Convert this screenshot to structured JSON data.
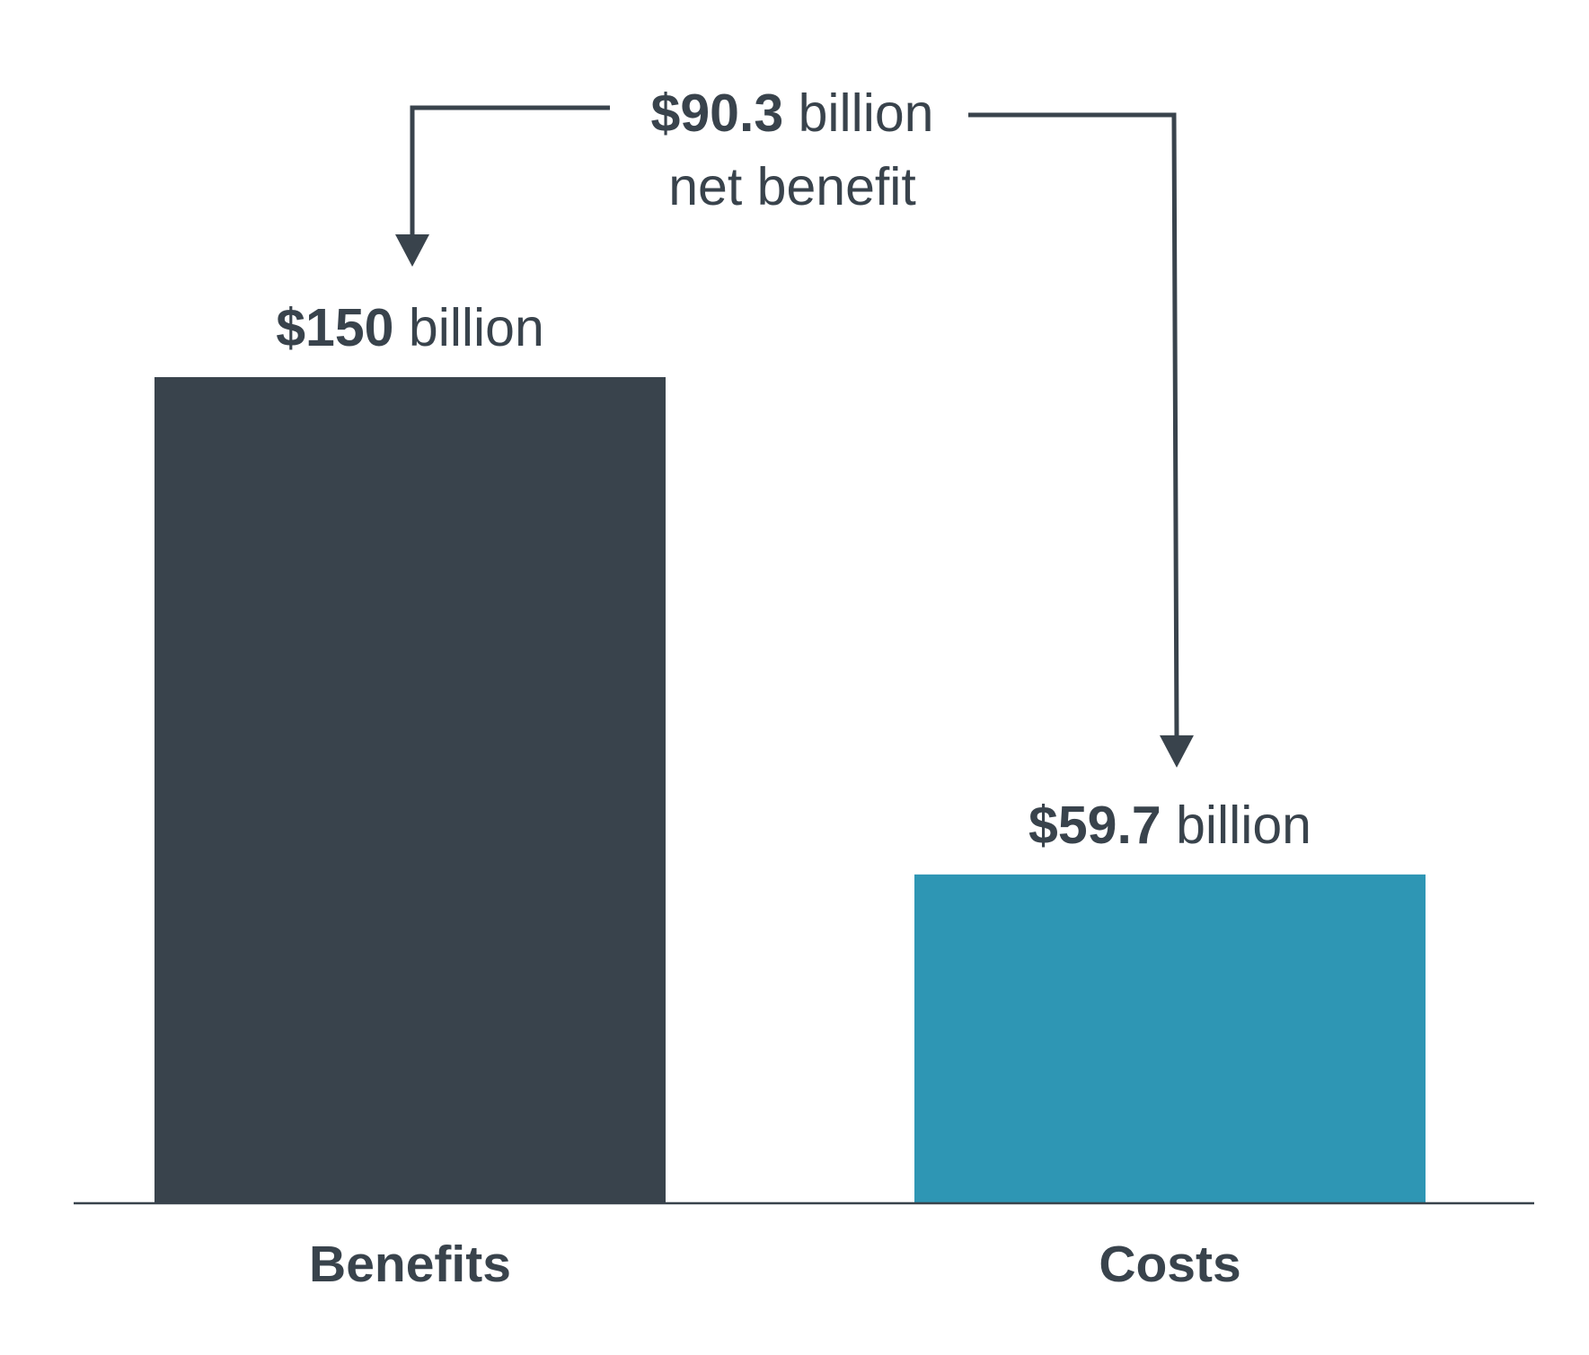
{
  "chart_data": {
    "type": "bar",
    "categories": [
      "Benefits",
      "Costs"
    ],
    "values": [
      150,
      59.7
    ],
    "value_labels": [
      {
        "bold": "$150",
        "rest": " billion"
      },
      {
        "bold": "$59.7",
        "rest": " billion"
      }
    ],
    "colors": [
      "#39434c",
      "#2e96b4"
    ],
    "ylim": [
      0,
      150
    ],
    "annotation": {
      "bold": "$90.3",
      "rest": " billion",
      "line2": "net benefit",
      "value": 90.3
    },
    "grid": false,
    "legend": "none"
  },
  "colors": {
    "text": "#39434c",
    "axis": "#39434c"
  }
}
